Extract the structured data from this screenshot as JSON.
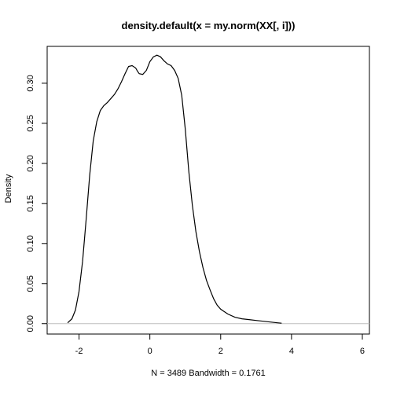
{
  "chart_data": {
    "type": "line",
    "title": "density.default(x = my.norm(XX[, i]))",
    "xlabel": "N = 3489   Bandwidth = 0.1761",
    "ylabel": "Density",
    "xlim": [
      -2.9,
      6.2
    ],
    "ylim": [
      -0.013,
      0.346
    ],
    "xticks": [
      -2,
      0,
      2,
      4,
      6
    ],
    "xtick_labels": [
      "-2",
      "0",
      "2",
      "4",
      "6"
    ],
    "yticks": [
      0.0,
      0.05,
      0.1,
      0.15,
      0.2,
      0.25,
      0.3
    ],
    "ytick_labels": [
      "0.00",
      "0.05",
      "0.10",
      "0.15",
      "0.20",
      "0.25",
      "0.30"
    ],
    "baseline": 0,
    "colors": {
      "line": "#000000",
      "baseline": "#bebebe"
    },
    "series": [
      {
        "x": [
          -2.32,
          -2.2,
          -2.1,
          -2.0,
          -1.9,
          -1.8,
          -1.7,
          -1.6,
          -1.5,
          -1.4,
          -1.3,
          -1.2,
          -1.1,
          -1.0,
          -0.9,
          -0.8,
          -0.7,
          -0.6,
          -0.5,
          -0.4,
          -0.35,
          -0.3,
          -0.2,
          -0.1,
          0.0,
          0.1,
          0.2,
          0.3,
          0.4,
          0.5,
          0.6,
          0.7,
          0.8,
          0.9,
          1.0,
          1.1,
          1.2,
          1.3,
          1.4,
          1.5,
          1.6,
          1.7,
          1.8,
          1.9,
          2.0,
          2.2,
          2.4,
          2.6,
          2.8,
          3.0,
          3.2,
          3.4,
          3.6,
          3.72
        ],
        "y": [
          0.001,
          0.006,
          0.017,
          0.04,
          0.078,
          0.13,
          0.185,
          0.228,
          0.252,
          0.266,
          0.272,
          0.276,
          0.281,
          0.286,
          0.293,
          0.302,
          0.312,
          0.321,
          0.322,
          0.319,
          0.315,
          0.312,
          0.311,
          0.316,
          0.327,
          0.333,
          0.335,
          0.333,
          0.328,
          0.324,
          0.322,
          0.316,
          0.306,
          0.285,
          0.243,
          0.19,
          0.148,
          0.115,
          0.09,
          0.07,
          0.054,
          0.042,
          0.031,
          0.023,
          0.018,
          0.012,
          0.008,
          0.006,
          0.005,
          0.004,
          0.003,
          0.002,
          0.001,
          0.0005
        ]
      }
    ]
  }
}
